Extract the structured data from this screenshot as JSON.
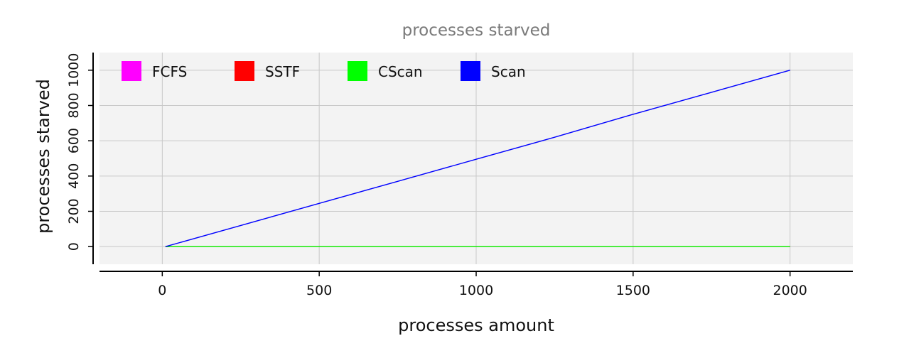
{
  "chart_data": {
    "type": "line",
    "title": "processes starved",
    "xlabel": "processes amount",
    "ylabel": "processes starved",
    "xlim": [
      -200,
      2200
    ],
    "ylim": [
      -100,
      1100
    ],
    "x_ticks": [
      0,
      500,
      1000,
      1500,
      2000
    ],
    "y_ticks": [
      0,
      200,
      400,
      600,
      800,
      1000
    ],
    "grid": true,
    "legend_position": "top-left",
    "series": [
      {
        "name": "FCFS",
        "color": "#ff00ff",
        "x": [
          10,
          2000
        ],
        "y": [
          0,
          0
        ]
      },
      {
        "name": "SSTF",
        "color": "#ff0000",
        "x": [
          10,
          2000
        ],
        "y": [
          0,
          0
        ]
      },
      {
        "name": "CScan",
        "color": "#00ff00",
        "x": [
          10,
          2000
        ],
        "y": [
          0,
          0
        ]
      },
      {
        "name": "Scan",
        "color": "#0000ff",
        "x": [
          10,
          250,
          500,
          750,
          1000,
          1250,
          1500,
          1750,
          2000
        ],
        "y": [
          0,
          120,
          245,
          370,
          495,
          620,
          750,
          875,
          1000
        ]
      }
    ]
  }
}
